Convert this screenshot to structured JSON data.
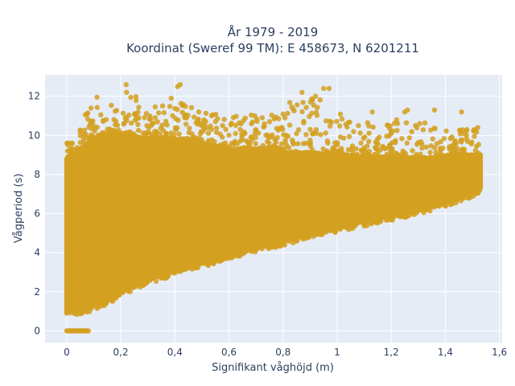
{
  "chart_data": {
    "type": "scatter",
    "title_line1": "År 1979 - 2019",
    "title_line2": "Koordinat (Sweref 99 TM): E 458673, N 6201211",
    "xlabel": "Signifikant våghöjd (m)",
    "ylabel": "Vågperiod (s)",
    "xlim": [
      -0.08,
      1.61
    ],
    "ylim": [
      -0.6,
      13.1
    ],
    "xticks": [
      0,
      0.2,
      0.4,
      0.6,
      0.8,
      1,
      1.2,
      1.4,
      1.6
    ],
    "xtick_labels": [
      "0",
      "0,2",
      "0,4",
      "0,6",
      "0,8",
      "1",
      "1,2",
      "1,4",
      "1,6"
    ],
    "yticks": [
      0,
      2,
      4,
      6,
      8,
      10,
      12
    ],
    "ytick_labels": [
      "0",
      "2",
      "4",
      "6",
      "8",
      "10",
      "12"
    ],
    "grid": true,
    "colors": {
      "point": "#d4a020",
      "plot_bg": "#e5ecf6",
      "grid": "#ffffff",
      "text": "#2a3f5f"
    },
    "envelope_upper": [
      [
        0.0,
        9.7
      ],
      [
        0.05,
        10.6
      ],
      [
        0.1,
        11.9
      ],
      [
        0.15,
        12.2
      ],
      [
        0.2,
        12.3
      ],
      [
        0.25,
        12.4
      ],
      [
        0.3,
        11.8
      ],
      [
        0.35,
        11.9
      ],
      [
        0.4,
        12.0
      ],
      [
        0.45,
        11.5
      ],
      [
        0.5,
        11.2
      ],
      [
        0.6,
        11.0
      ],
      [
        0.7,
        11.1
      ],
      [
        0.8,
        11.6
      ],
      [
        0.9,
        12.3
      ],
      [
        1.0,
        11.2
      ],
      [
        1.1,
        10.8
      ],
      [
        1.2,
        10.6
      ],
      [
        1.3,
        10.8
      ],
      [
        1.4,
        10.4
      ],
      [
        1.5,
        10.3
      ]
    ],
    "dense_upper": [
      [
        0.0,
        8.8
      ],
      [
        0.1,
        9.8
      ],
      [
        0.2,
        10.1
      ],
      [
        0.3,
        9.8
      ],
      [
        0.4,
        9.8
      ],
      [
        0.5,
        9.6
      ],
      [
        0.6,
        9.3
      ],
      [
        0.7,
        9.3
      ],
      [
        0.8,
        9.1
      ],
      [
        0.9,
        9.1
      ],
      [
        1.0,
        9.0
      ],
      [
        1.1,
        8.9
      ],
      [
        1.2,
        8.9
      ],
      [
        1.3,
        8.8
      ],
      [
        1.4,
        8.9
      ],
      [
        1.5,
        9.0
      ],
      [
        1.53,
        9.0
      ]
    ],
    "envelope_lower": [
      [
        0.0,
        1.0
      ],
      [
        0.05,
        1.1
      ],
      [
        0.1,
        1.3
      ],
      [
        0.15,
        1.6
      ],
      [
        0.2,
        2.0
      ],
      [
        0.3,
        2.6
      ],
      [
        0.4,
        3.1
      ],
      [
        0.5,
        3.5
      ],
      [
        0.6,
        3.9
      ],
      [
        0.7,
        4.3
      ],
      [
        0.8,
        4.6
      ],
      [
        0.9,
        5.0
      ],
      [
        1.0,
        5.3
      ],
      [
        1.1,
        5.6
      ],
      [
        1.2,
        5.9
      ],
      [
        1.3,
        6.2
      ],
      [
        1.4,
        6.6
      ],
      [
        1.5,
        7.1
      ],
      [
        1.53,
        7.3
      ]
    ],
    "zero_period_points": {
      "x_range": [
        0.0,
        0.08
      ],
      "y": 0
    },
    "scattered_outliers": [
      [
        0.0,
        4.8
      ],
      [
        0.0,
        3.2
      ],
      [
        0.0,
        2.0
      ],
      [
        0.0,
        1.3
      ],
      [
        0.0,
        0.9
      ],
      [
        0.22,
        12.6
      ],
      [
        0.41,
        12.5
      ],
      [
        0.42,
        12.6
      ],
      [
        0.87,
        12.2
      ],
      [
        0.92,
        12.0
      ],
      [
        0.95,
        12.4
      ],
      [
        0.97,
        12.4
      ],
      [
        1.13,
        11.2
      ],
      [
        1.22,
        10.8
      ],
      [
        1.25,
        11.2
      ],
      [
        1.26,
        11.3
      ],
      [
        1.29,
        10.5
      ],
      [
        1.36,
        11.3
      ],
      [
        1.46,
        11.2
      ],
      [
        1.48,
        10.3
      ],
      [
        1.52,
        10.4
      ],
      [
        0.3,
        8.9
      ],
      [
        0.5,
        10.6
      ],
      [
        0.75,
        10.7
      ],
      [
        1.1,
        9.2
      ],
      [
        1.33,
        9.4
      ],
      [
        1.44,
        9.6
      ]
    ]
  }
}
